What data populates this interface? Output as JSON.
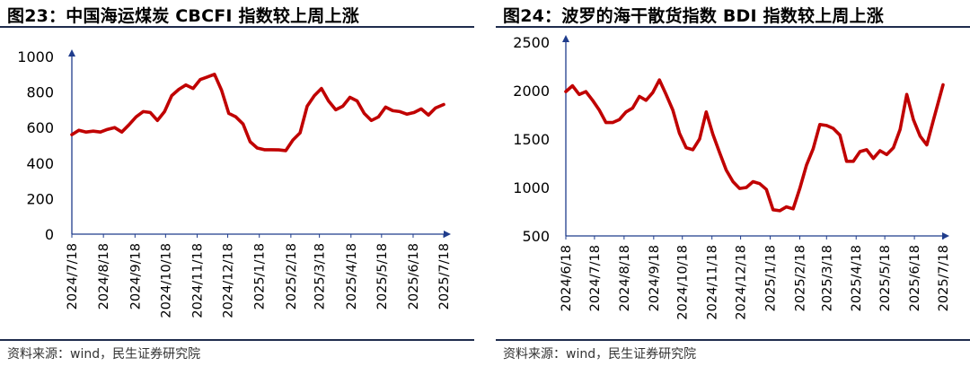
{
  "panels": [
    {
      "title": "图23：中国海运煤炭 CBCFI 指数较上周上涨",
      "source": "资料来源：wind，民生证券研究院"
    },
    {
      "title": "图24：波罗的海干散货指数 BDI 指数较上周上涨",
      "source": "资料来源：wind，民生证券研究院"
    }
  ],
  "colors": {
    "line": "#c00000",
    "axis": "#1f3c8c",
    "rule": "#1f2c4d"
  },
  "chart_data": [
    {
      "type": "line",
      "title": "中国海运煤炭 CBCFI 指数较上周上涨",
      "xlabel": "",
      "ylabel": "",
      "ylim": [
        0,
        1000
      ],
      "yticks": [
        0,
        200,
        400,
        600,
        800,
        1000
      ],
      "xlim": [
        "2024-07-18",
        "2025-07-18"
      ],
      "xticks": [
        "2024/7/18",
        "2024/8/18",
        "2024/9/18",
        "2024/10/18",
        "2024/11/18",
        "2024/12/18",
        "2025/1/18",
        "2025/2/18",
        "2025/3/18",
        "2025/4/18",
        "2025/5/18",
        "2025/6/18",
        "2025/7/18"
      ],
      "grid": false,
      "series": [
        {
          "name": "",
          "x": [
            "2024-07-18",
            "2024-07-25",
            "2024-08-01",
            "2024-08-08",
            "2024-08-15",
            "2024-08-22",
            "2024-08-29",
            "2024-09-05",
            "2024-09-12",
            "2024-09-19",
            "2024-09-26",
            "2024-10-03",
            "2024-10-10",
            "2024-10-17",
            "2024-10-24",
            "2024-10-31",
            "2024-11-07",
            "2024-11-14",
            "2024-11-21",
            "2024-11-28",
            "2024-12-05",
            "2024-12-12",
            "2024-12-19",
            "2024-12-26",
            "2025-01-02",
            "2025-01-09",
            "2025-01-16",
            "2025-01-23",
            "2025-01-30",
            "2025-02-06",
            "2025-02-13",
            "2025-02-20",
            "2025-02-27",
            "2025-03-06",
            "2025-03-13",
            "2025-03-20",
            "2025-03-27",
            "2025-04-03",
            "2025-04-10",
            "2025-04-17",
            "2025-04-24",
            "2025-05-01",
            "2025-05-08",
            "2025-05-15",
            "2025-05-22",
            "2025-05-29",
            "2025-06-05",
            "2025-06-12",
            "2025-06-19",
            "2025-06-26",
            "2025-07-03",
            "2025-07-10",
            "2025-07-18"
          ],
          "y": [
            560,
            585,
            575,
            580,
            575,
            590,
            600,
            575,
            615,
            660,
            690,
            685,
            640,
            690,
            780,
            815,
            840,
            820,
            870,
            885,
            900,
            810,
            680,
            660,
            620,
            520,
            485,
            475,
            475,
            474,
            470,
            530,
            570,
            720,
            780,
            820,
            750,
            700,
            720,
            770,
            750,
            680,
            640,
            660,
            715,
            695,
            690,
            675,
            685,
            705,
            670,
            710,
            730
          ]
        }
      ]
    },
    {
      "type": "line",
      "title": "波罗的海干散货指数 BDI 指数较上周上涨",
      "xlabel": "",
      "ylabel": "",
      "ylim": [
        500,
        2500
      ],
      "yticks": [
        500,
        1000,
        1500,
        2000,
        2500
      ],
      "xlim": [
        "2024-06-18",
        "2025-07-18"
      ],
      "xticks": [
        "2024/6/18",
        "2024/7/18",
        "2024/8/18",
        "2024/9/18",
        "2024/10/18",
        "2024/11/18",
        "2024/12/18",
        "2025/1/18",
        "2025/2/18",
        "2025/3/18",
        "2025/4/18",
        "2025/5/18",
        "2025/6/18",
        "2025/7/18"
      ],
      "grid": false,
      "series": [
        {
          "name": "",
          "x": [
            "2024-06-18",
            "2024-06-25",
            "2024-07-02",
            "2024-07-09",
            "2024-07-16",
            "2024-07-23",
            "2024-07-30",
            "2024-08-06",
            "2024-08-13",
            "2024-08-20",
            "2024-08-27",
            "2024-09-03",
            "2024-09-10",
            "2024-09-17",
            "2024-09-24",
            "2024-10-01",
            "2024-10-08",
            "2024-10-15",
            "2024-10-22",
            "2024-10-29",
            "2024-11-05",
            "2024-11-12",
            "2024-11-19",
            "2024-11-26",
            "2024-12-03",
            "2024-12-10",
            "2024-12-17",
            "2024-12-24",
            "2024-12-31",
            "2025-01-07",
            "2025-01-14",
            "2025-01-21",
            "2025-01-28",
            "2025-02-04",
            "2025-02-11",
            "2025-02-18",
            "2025-02-25",
            "2025-03-04",
            "2025-03-11",
            "2025-03-18",
            "2025-03-25",
            "2025-04-01",
            "2025-04-08",
            "2025-04-15",
            "2025-04-22",
            "2025-04-29",
            "2025-05-06",
            "2025-05-13",
            "2025-05-20",
            "2025-05-27",
            "2025-06-03",
            "2025-06-10",
            "2025-06-17",
            "2025-06-24",
            "2025-07-01",
            "2025-07-08",
            "2025-07-18"
          ],
          "y": [
            1990,
            2050,
            1960,
            1990,
            1900,
            1800,
            1670,
            1670,
            1700,
            1780,
            1820,
            1940,
            1900,
            1980,
            2110,
            1960,
            1800,
            1560,
            1410,
            1390,
            1500,
            1780,
            1550,
            1360,
            1180,
            1060,
            990,
            1000,
            1060,
            1040,
            980,
            770,
            760,
            800,
            780,
            990,
            1230,
            1400,
            1650,
            1640,
            1610,
            1540,
            1270,
            1270,
            1370,
            1390,
            1300,
            1380,
            1340,
            1410,
            1600,
            1960,
            1700,
            1530,
            1440,
            1700,
            2060
          ]
        }
      ]
    }
  ]
}
